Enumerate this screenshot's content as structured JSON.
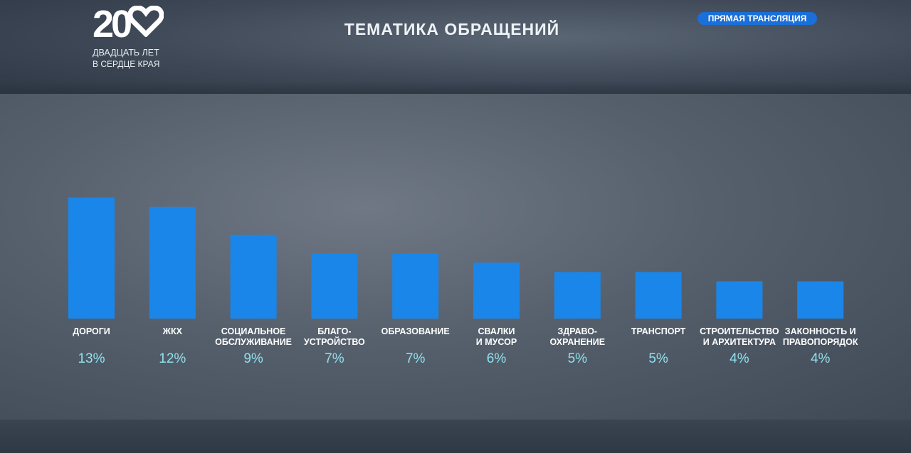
{
  "header": {
    "logo_number": "20",
    "logo_line1": "ДВАДЦАТЬ ЛЕТ",
    "logo_line2": "В СЕРДЦЕ КРАЯ",
    "title": "ТЕМАТИКА ОБРАЩЕНИЙ",
    "live_badge": "ПРЯМАЯ ТРАНСЛЯЦИЯ"
  },
  "colors": {
    "bar": "#1a86ea",
    "category_text": "#ffffff",
    "value_text": "#8fe0ec",
    "badge": "#1a6fd8"
  },
  "chart_data": {
    "type": "bar",
    "title": "ТЕМАТИКА ОБРАЩЕНИЙ",
    "categories": [
      [
        "ДОРОГИ"
      ],
      [
        "ЖКХ"
      ],
      [
        "СОЦИАЛЬНОЕ",
        "ОБСЛУЖИВАНИЕ"
      ],
      [
        "БЛАГО-",
        "УСТРОЙСТВО"
      ],
      [
        "ОБРАЗОВАНИЕ"
      ],
      [
        "СВАЛКИ",
        "И МУСОР"
      ],
      [
        "ЗДРАВО-",
        "ОХРАНЕНИЕ"
      ],
      [
        "ТРАНСПОРТ"
      ],
      [
        "СТРОИТЕЛЬСТВО",
        "И АРХИТЕКТУРА"
      ],
      [
        "ЗАКОННОСТЬ И",
        "ПРАВОПОРЯДОК"
      ]
    ],
    "values": [
      13,
      12,
      9,
      7,
      7,
      6,
      5,
      5,
      4,
      4
    ],
    "value_labels": [
      "13%",
      "12%",
      "9%",
      "7%",
      "7%",
      "6%",
      "5%",
      "5%",
      "4%",
      "4%"
    ],
    "xlabel": "",
    "ylabel": "",
    "grid": false
  }
}
